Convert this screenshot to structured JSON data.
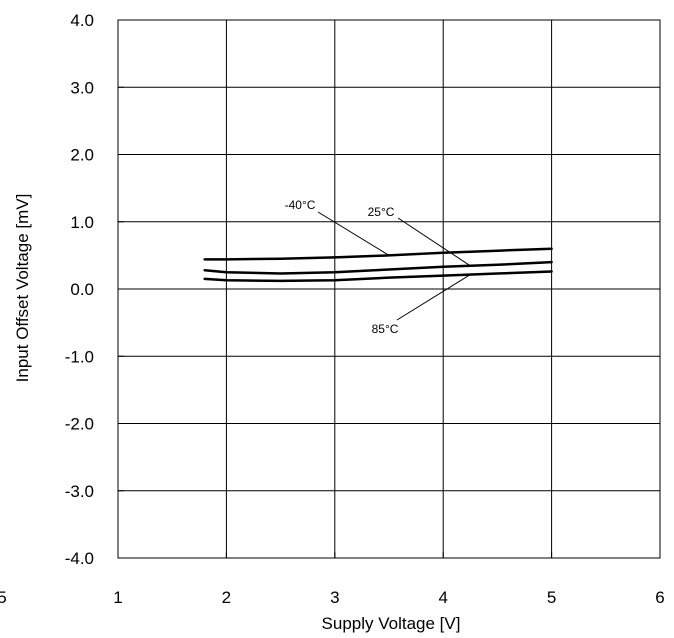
{
  "chart_data": {
    "type": "line",
    "title": "",
    "xlabel": "Supply Voltage [V]",
    "ylabel": "Input Offset Voltage [mV]",
    "xlim": [
      1,
      6
    ],
    "ylim": [
      -4,
      4
    ],
    "x_ticks": [
      "1",
      "2",
      "3",
      "4",
      "5",
      "6"
    ],
    "y_ticks": [
      "-4.0",
      "-3.0",
      "-2.0",
      "-1.0",
      "0.0",
      "1.0",
      "2.0",
      "3.0",
      "4.0"
    ],
    "grid": true,
    "legend": "none",
    "stray_tick_label": "5",
    "series": [
      {
        "name": "-40°C",
        "x": [
          1.8,
          2.0,
          2.5,
          3.0,
          3.5,
          4.0,
          4.5,
          5.0
        ],
        "y": [
          0.44,
          0.44,
          0.45,
          0.47,
          0.5,
          0.54,
          0.57,
          0.6
        ]
      },
      {
        "name": "25°C",
        "x": [
          1.8,
          2.0,
          2.5,
          3.0,
          3.5,
          4.0,
          4.5,
          5.0
        ],
        "y": [
          0.28,
          0.25,
          0.23,
          0.25,
          0.29,
          0.33,
          0.36,
          0.4
        ]
      },
      {
        "name": "85°C",
        "x": [
          1.8,
          2.0,
          2.5,
          3.0,
          3.5,
          4.0,
          4.5,
          5.0
        ],
        "y": [
          0.15,
          0.13,
          0.12,
          0.13,
          0.17,
          0.2,
          0.23,
          0.26
        ]
      }
    ],
    "annotations": [
      {
        "text": "-40°C",
        "target_series": "-40°C"
      },
      {
        "text": "25°C",
        "target_series": "25°C"
      },
      {
        "text": "85°C",
        "target_series": "85°C"
      }
    ],
    "line_color": "#000000",
    "background": "#ffffff"
  }
}
